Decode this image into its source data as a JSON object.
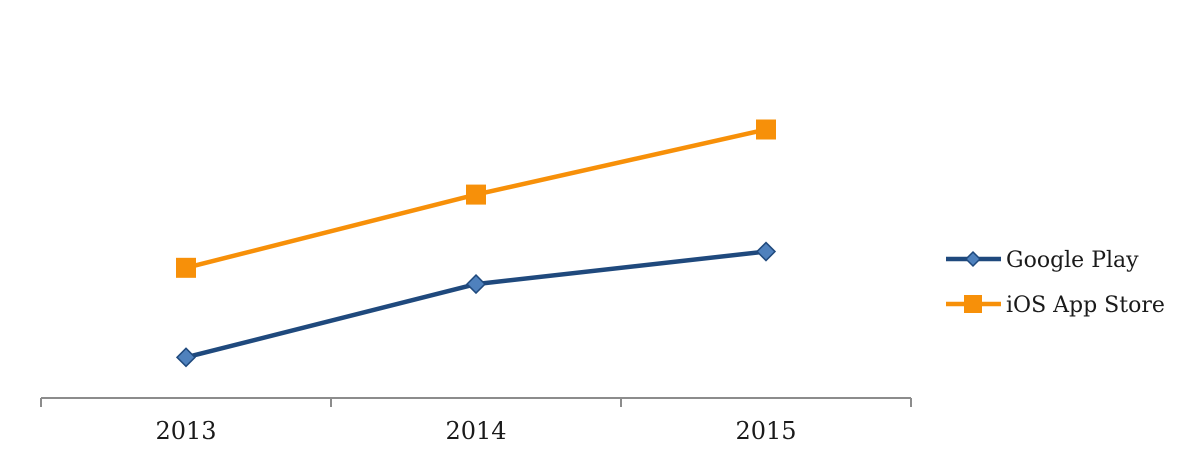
{
  "chart_data": {
    "type": "line",
    "title": "",
    "xlabel": "",
    "ylabel": "",
    "categories": [
      "2013",
      "2014",
      "2015"
    ],
    "series": [
      {
        "name": "Google Play",
        "values": [
          0.5,
          1.4,
          1.8
        ],
        "color": "#1f497d",
        "marker_color": "#4f81bd",
        "marker": "diamond"
      },
      {
        "name": "iOS App Store",
        "values": [
          1.6,
          2.5,
          3.3
        ],
        "color": "#f79009",
        "marker_color": "#f79009",
        "marker": "square"
      }
    ],
    "ylim": [
      0,
      4.4
    ],
    "grid": false,
    "y_axis_visible": false,
    "legend_position": "right"
  }
}
